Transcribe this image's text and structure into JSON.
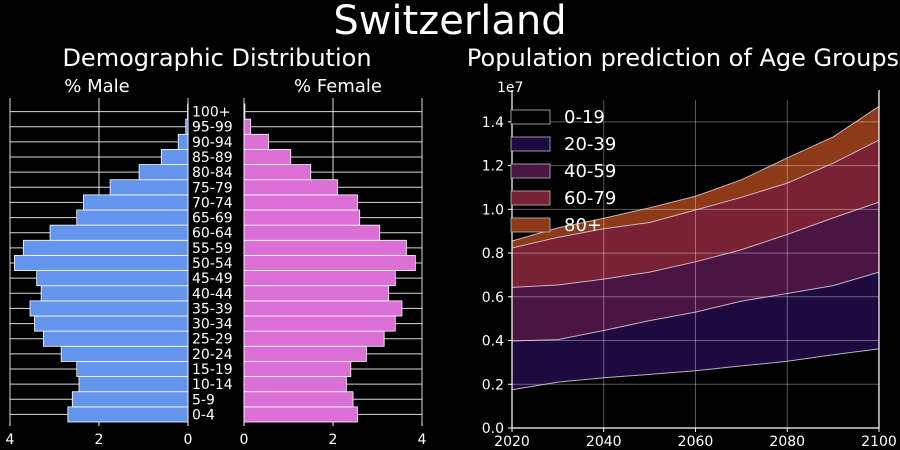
{
  "figure": {
    "title": "Switzerland"
  },
  "chart_data": [
    {
      "type": "bar",
      "orientation": "horizontal",
      "title": "Demographic Distribution",
      "categories": [
        "0-4",
        "5-9",
        "10-14",
        "15-19",
        "20-24",
        "25-29",
        "30-34",
        "35-39",
        "40-44",
        "45-49",
        "50-54",
        "55-59",
        "60-64",
        "65-69",
        "70-74",
        "75-79",
        "80-84",
        "85-89",
        "90-94",
        "95-99",
        "100+"
      ],
      "series": [
        {
          "name": "% Male",
          "color": "#6495ED",
          "values": [
            2.7,
            2.6,
            2.45,
            2.5,
            2.85,
            3.25,
            3.45,
            3.55,
            3.3,
            3.4,
            3.9,
            3.7,
            3.1,
            2.5,
            2.35,
            1.75,
            1.1,
            0.6,
            0.22,
            0.05,
            0.01
          ]
        },
        {
          "name": "% Female",
          "color": "#DA70D6",
          "values": [
            2.55,
            2.45,
            2.3,
            2.4,
            2.75,
            3.15,
            3.4,
            3.55,
            3.25,
            3.4,
            3.85,
            3.65,
            3.05,
            2.6,
            2.55,
            2.1,
            1.5,
            1.05,
            0.55,
            0.15,
            0.02
          ]
        }
      ],
      "xticks": [
        "4",
        "2",
        "0",
        "2",
        "4"
      ],
      "xlim": [
        0,
        4
      ],
      "grid": true
    },
    {
      "type": "area",
      "stacked": true,
      "title": "Population prediction of Age Groups",
      "x": [
        2020,
        2030,
        2040,
        2050,
        2060,
        2070,
        2080,
        2090,
        2100
      ],
      "y_scale_label": "1e7",
      "ylim": [
        0,
        1.5
      ],
      "yticks": [
        "0.0",
        "0.2",
        "0.4",
        "0.6",
        "0.8",
        "1.0",
        "1.2",
        "1.4"
      ],
      "xticks": [
        "2020",
        "2040",
        "2060",
        "2080",
        "2100"
      ],
      "legend_position": "upper-left",
      "grid": true,
      "series": [
        {
          "name": "0-19",
          "color": "#000000",
          "values": [
            0.175,
            0.21,
            0.23,
            0.245,
            0.262,
            0.284,
            0.305,
            0.335,
            0.362
          ]
        },
        {
          "name": "20-39",
          "color": "#1E0A3F",
          "values": [
            0.223,
            0.194,
            0.216,
            0.246,
            0.268,
            0.296,
            0.31,
            0.316,
            0.351
          ]
        },
        {
          "name": "40-59",
          "color": "#4A1542",
          "values": [
            0.245,
            0.25,
            0.235,
            0.222,
            0.23,
            0.235,
            0.27,
            0.31,
            0.32
          ]
        },
        {
          "name": "60-79",
          "color": "#7A2235",
          "values": [
            0.18,
            0.218,
            0.23,
            0.227,
            0.237,
            0.24,
            0.235,
            0.25,
            0.284
          ]
        },
        {
          "name": "80+",
          "color": "#8C3A18",
          "values": [
            0.032,
            0.043,
            0.048,
            0.067,
            0.063,
            0.08,
            0.115,
            0.12,
            0.154
          ]
        }
      ]
    }
  ]
}
